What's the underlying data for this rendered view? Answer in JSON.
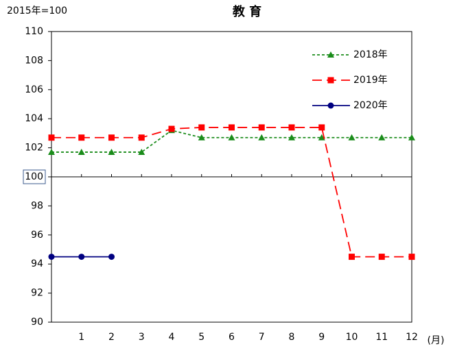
{
  "chart_data": {
    "type": "line",
    "title": "教 育",
    "subtitle": "2015年=100",
    "x_label": "(月)",
    "x": [
      0,
      1,
      2,
      3,
      4,
      5,
      6,
      7,
      8,
      9,
      10,
      11,
      12
    ],
    "xlim": [
      0,
      12
    ],
    "xticks": [
      1,
      2,
      3,
      4,
      5,
      6,
      7,
      8,
      9,
      10,
      11,
      12
    ],
    "ylim": [
      90,
      110
    ],
    "yticks": [
      90,
      92,
      94,
      96,
      98,
      100,
      102,
      104,
      106,
      108,
      110
    ],
    "reference_line": 100,
    "legend": "upper right",
    "series": [
      {
        "name": "2018年",
        "color": "#1a8c1a",
        "marker": "triangle",
        "dash": "dotted",
        "values": [
          101.7,
          101.7,
          101.7,
          101.7,
          103.2,
          102.7,
          102.7,
          102.7,
          102.7,
          102.7,
          102.7,
          102.7,
          102.7
        ]
      },
      {
        "name": "2019年",
        "color": "#ff0000",
        "marker": "square",
        "dash": "dashed",
        "values": [
          102.7,
          102.7,
          102.7,
          102.7,
          103.3,
          103.4,
          103.4,
          103.4,
          103.4,
          103.4,
          94.5,
          94.5,
          94.5
        ]
      },
      {
        "name": "2020年",
        "color": "#000080",
        "marker": "circle",
        "dash": "solid",
        "values": [
          94.5,
          94.5,
          94.5,
          null,
          null,
          null,
          null,
          null,
          null,
          null,
          null,
          null,
          null
        ]
      }
    ]
  }
}
